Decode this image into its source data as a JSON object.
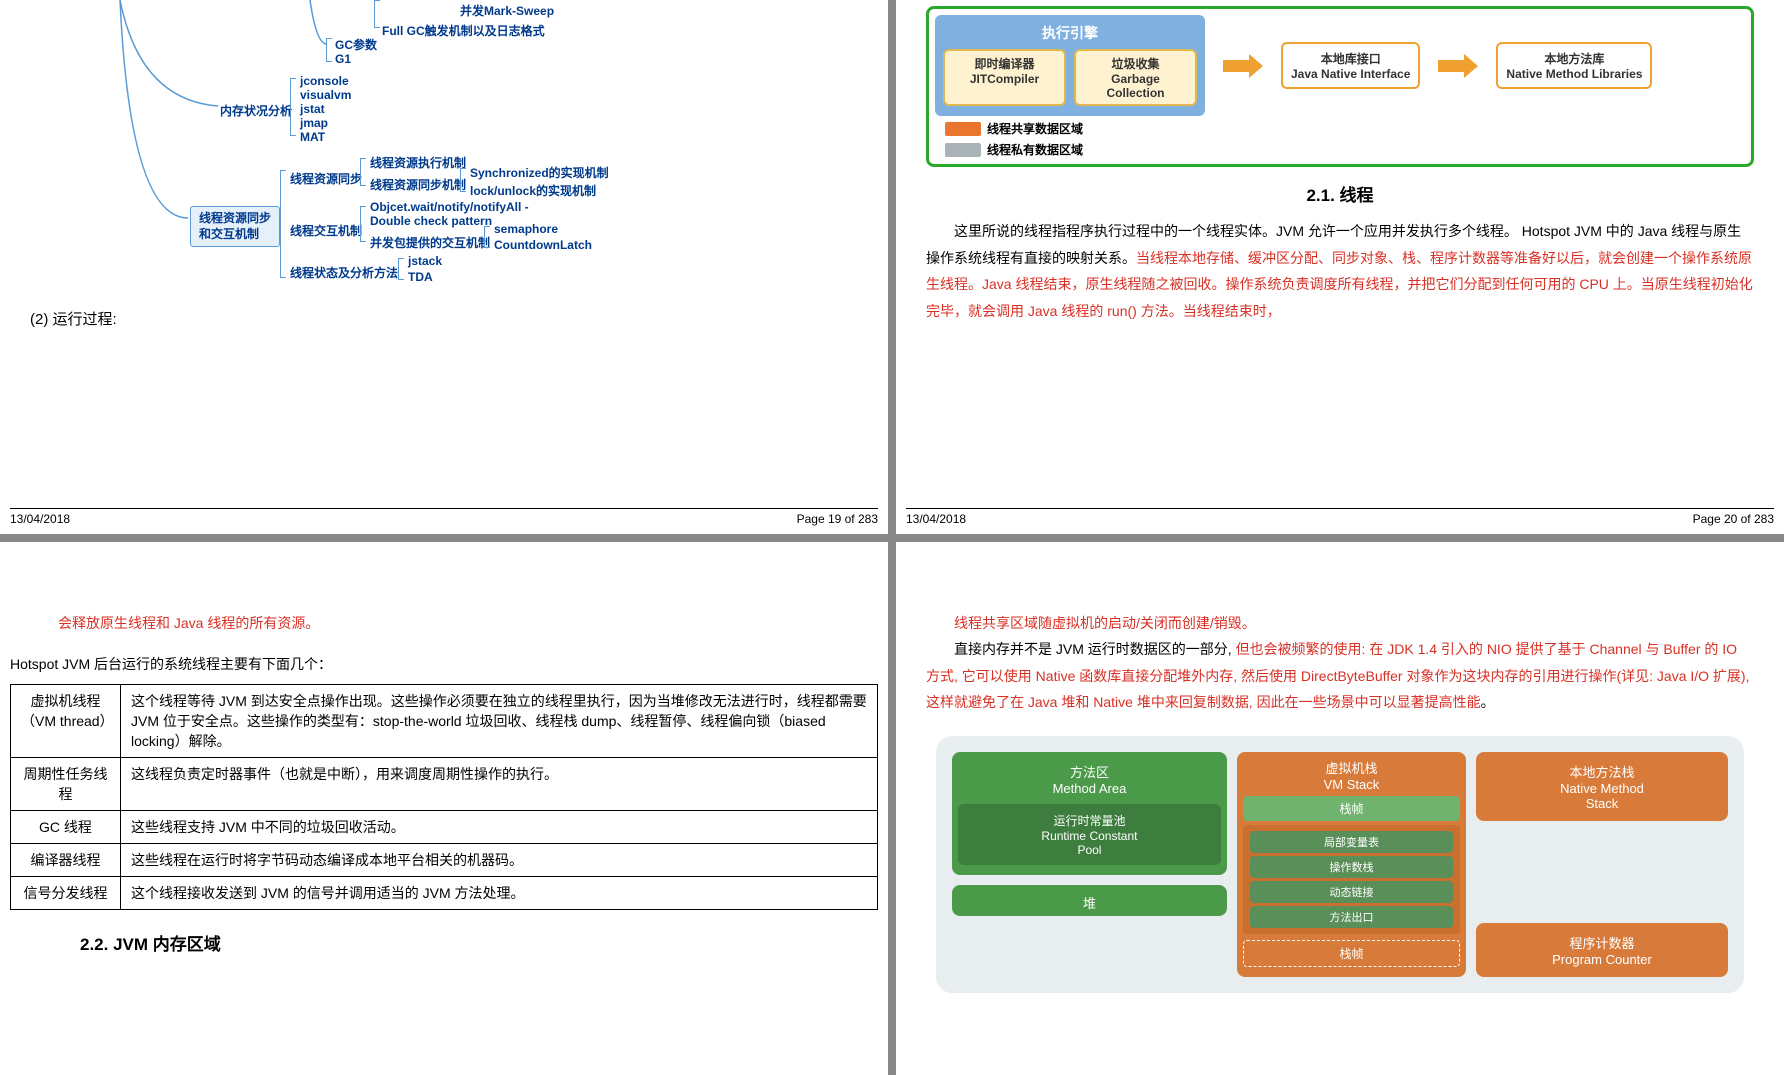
{
  "footer": {
    "date": "13/04/2018",
    "p19": "Page 19 of 283",
    "p20": "Page 20 of 283"
  },
  "p1": {
    "mm": {
      "marksweep": "并发Mark-Sweep",
      "fullgc": "Full GC触发机制以及日志格式",
      "gcparam": "GC参数",
      "g1": "G1",
      "memana": "内存状况分析",
      "jconsole": "jconsole",
      "visualvm": "visualvm",
      "jstat": "jstat",
      "jmap": "jmap",
      "mat": "MAT",
      "root": "线程资源同步\n和交互机制",
      "sync": "线程资源同步",
      "syncA": "线程资源执行机制",
      "syncB": "线程资源同步机制",
      "sync1": "Synchronized的实现机制",
      "sync2": "lock/unlock的实现机制",
      "inter": "线程交互机制",
      "interA": "Objcet.wait/notify/notifyAll -\nDouble check pattern",
      "interB": "并发包提供的交互机制",
      "sem": "semaphore",
      "cdl": "CountdownLatch",
      "state": "线程状态及分析方法",
      "jstack": "jstack",
      "tda": "TDA"
    },
    "sub": "(2) 运行过程:"
  },
  "p2": {
    "exec": {
      "outer_border": "#2aa82a",
      "title": "执行引擎",
      "jit1": "即时编译器",
      "jit2": "JITCompiler",
      "gc1": "垃圾收集",
      "gc2": "Garbage Collection",
      "iface1": "本地库接口",
      "iface2": "Java Native Interface",
      "lib1": "本地方法库",
      "lib2": "Native Method Libraries",
      "legend1_color": "#e8762c",
      "legend1": "线程共享数据区域",
      "legend2_color": "#aab3b8",
      "legend2": "线程私有数据区域"
    },
    "title": "2.1. 线程",
    "para": {
      "t1": "这里所说的线程指程序执行过程中的一个线程实体。JVM 允许一个应用并发执行多个线程。",
      "t2a": "Hotspot JVM 中的 Java 线程与原生操作系统线程有直接的映射关系。",
      "t2b": "当线程本地存储、缓冲区分配、同步对象、栈、程序计数器等准备好以后，就会创建一个操作系统原生线程。Java 线程结束，原生线程随之被回收。操作系统负责调度所有线程，并把它们分配到任何可用的 CPU 上。当原生线程初始化完毕，就会调用 Java 线程的 run() 方法。当线程结束时，"
    }
  },
  "p3": {
    "top": "会释放原生线程和 Java 线程的所有资源。",
    "intro": "Hotspot JVM 后台运行的系统线程主要有下面几个：",
    "rows": [
      [
        "虚拟机线程\n（VM thread）",
        "这个线程等待 JVM 到达安全点操作出现。这些操作必须要在独立的线程里执行，因为当堆修改无法进行时，线程都需要 JVM 位于安全点。这些操作的类型有：stop-the-world 垃圾回收、线程栈 dump、线程暂停、线程偏向锁（biased locking）解除。"
      ],
      [
        "周期性任务线程",
        "这线程负责定时器事件（也就是中断），用来调度周期性操作的执行。"
      ],
      [
        "GC 线程",
        "这些线程支持 JVM 中不同的垃圾回收活动。"
      ],
      [
        "编译器线程",
        "这些线程在运行时将字节码动态编译成本地平台相关的机器码。"
      ],
      [
        "信号分发线程",
        "这个线程接收发送到 JVM 的信号并调用适当的 JVM 方法处理。"
      ]
    ],
    "h2": "2.2. JVM 内存区域"
  },
  "p4": {
    "top": "线程共享区域随虚拟机的启动/关闭而创建/销毁。",
    "p1a": "直接内存并不是 JVM 运行时数据区的一部分, ",
    "p1b": "但也会被频繁的使用: 在 JDK 1.4 引入的 ",
    "p1c": "NIO 提供了基于 Channel 与 Buffer 的 IO 方式, 它可以使用 Native 函数库直接分配堆外内存, 然后使用 DirectByteBuffer 对象作为这块内存的引用进行操作(详见: Java I/O 扩展), 这样就避免了在 Java 堆和 Native 堆中来回复制数据, 因此在一些场景中可以显著提高性能",
    "p1d": "。",
    "mem": {
      "bg": "#e8eef0",
      "green": "#4a9a4a",
      "green2": "#6fb36f",
      "orange": "#d87a3a",
      "method1": "方法区",
      "method2": "Method Area",
      "rtpool1": "运行时常量池",
      "rtpool2": "Runtime Constant\nPool",
      "heap": "堆",
      "vms1": "虚拟机栈",
      "vms2": "VM Stack",
      "frame": "栈帧",
      "f1": "局部变量表",
      "f2": "操作数栈",
      "f3": "动态链接",
      "f4": "方法出口",
      "nms1": "本地方法栈",
      "nms2": "Native Method\nStack",
      "pc1": "程序计数器",
      "pc2": "Program Counter"
    }
  }
}
